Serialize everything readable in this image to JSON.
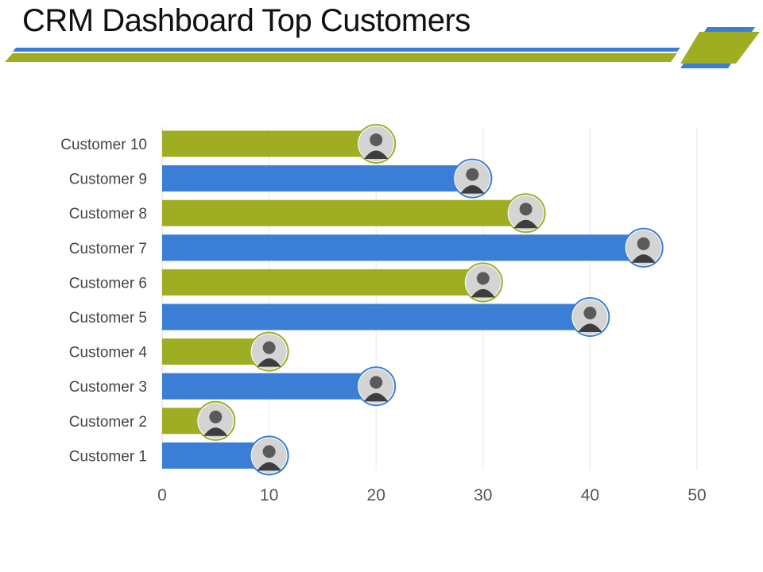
{
  "title": "CRM Dashboard Top Customers",
  "colors": {
    "green": "#9fad22",
    "blue": "#3a7fd5",
    "grid": "#e6e6e6"
  },
  "chart_data": {
    "type": "bar",
    "orientation": "horizontal",
    "title": "CRM Dashboard Top Customers",
    "categories": [
      "Customer 10",
      "Customer 9",
      "Customer 8",
      "Customer 7",
      "Customer 6",
      "Customer 5",
      "Customer 4",
      "Customer 3",
      "Customer 2",
      "Customer 1"
    ],
    "values": [
      20,
      29,
      34,
      45,
      30,
      40,
      10,
      20,
      5,
      10
    ],
    "bar_colors": [
      "green",
      "blue",
      "green",
      "blue",
      "green",
      "blue",
      "green",
      "blue",
      "green",
      "blue"
    ],
    "xlim": [
      0,
      50
    ],
    "xticks": [
      0,
      10,
      20,
      30,
      40,
      50
    ],
    "xlabel": "",
    "ylabel": "",
    "grid": true,
    "markers": "avatar-photo-icon at end of each bar"
  }
}
